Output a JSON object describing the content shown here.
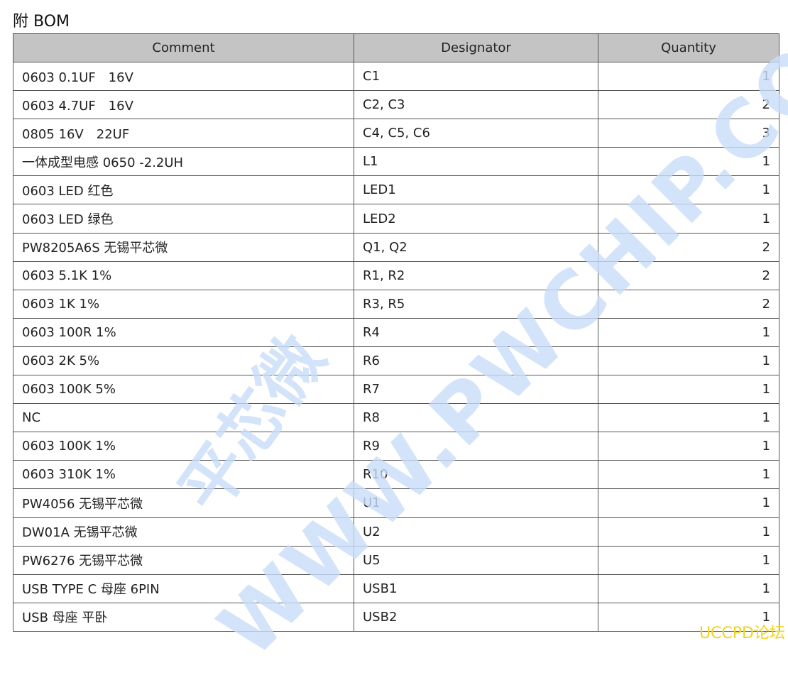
{
  "title": "附 BOM",
  "table": {
    "headers": [
      "Comment",
      "Designator",
      "Quantity"
    ],
    "rows": [
      [
        "0603 0.1UF　16V",
        "C1",
        "1"
      ],
      [
        "0603 4.7UF　16V",
        "C2, C3",
        "2"
      ],
      [
        "0805 16V　22UF",
        "C4, C5, C6",
        "3"
      ],
      [
        "一体成型电感 0650 -2.2UH",
        "L1",
        "1"
      ],
      [
        "0603 LED  红色",
        "LED1",
        "1"
      ],
      [
        "0603 LED  绿色",
        "LED2",
        "1"
      ],
      [
        "PW8205A6S  无锡平芯微",
        "Q1, Q2",
        "2"
      ],
      [
        "0603 5.1K 1%",
        "R1, R2",
        "2"
      ],
      [
        "0603 1K 1%",
        "R3, R5",
        "2"
      ],
      [
        "0603 100R 1%",
        "R4",
        "1"
      ],
      [
        "0603 2K 5%",
        "R6",
        "1"
      ],
      [
        "0603 100K 5%",
        "R7",
        "1"
      ],
      [
        "NC",
        "R8",
        "1"
      ],
      [
        "0603 100K 1%",
        "R9",
        "1"
      ],
      [
        "0603 310K 1%",
        "R10",
        "1"
      ],
      [
        "PW4056  无锡平芯微",
        "U1",
        "1"
      ],
      [
        "DW01A  无锡平芯微",
        "U2",
        "1"
      ],
      [
        "PW6276  无锡平芯微",
        "U5",
        "1"
      ],
      [
        "USB TYPE C  母座 6PIN",
        "USB1",
        "1"
      ],
      [
        "USB  母座  平卧",
        "USB2",
        "1"
      ]
    ]
  },
  "watermarks": {
    "url": "WWW.PWCHIP.COM",
    "brand": "平芯微",
    "color": "#c9def9"
  },
  "forum_mark": {
    "text": "UCCPD论坛",
    "color": "#f2d320"
  }
}
